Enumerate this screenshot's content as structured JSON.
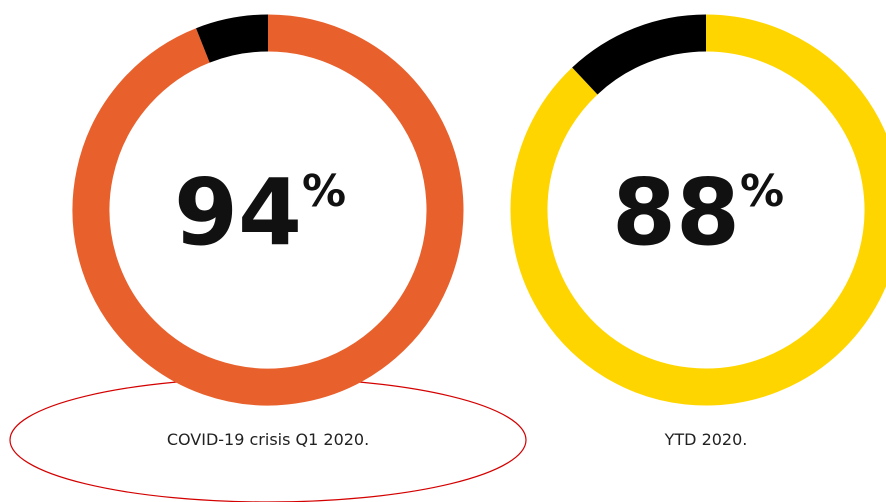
{
  "chart_data": [
    {
      "type": "donut",
      "values": [
        94,
        6
      ],
      "colors": [
        "#e8602c",
        "#000000"
      ],
      "unit": "%",
      "caption": "COVID-19 crisis Q1 2020."
    },
    {
      "type": "donut",
      "values": [
        88,
        12
      ],
      "colors": [
        "#ffd500",
        "#000000"
      ],
      "unit": "%",
      "caption": "YTD 2020."
    }
  ]
}
